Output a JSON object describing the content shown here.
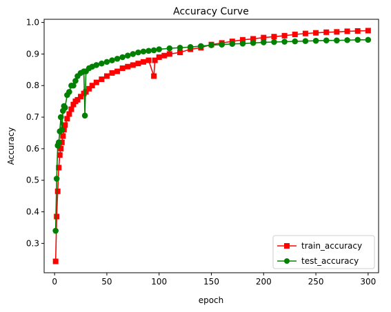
{
  "chart_data": {
    "type": "line",
    "title": "Accuracy Curve",
    "xlabel": "epoch",
    "ylabel": "Accuracy",
    "xlim": [
      -10,
      310
    ],
    "ylim": [
      0.207,
      1.01
    ],
    "xticks": [
      0,
      50,
      100,
      150,
      200,
      250,
      300
    ],
    "xtick_labels": [
      "0",
      "50",
      "100",
      "150",
      "200",
      "250",
      "300"
    ],
    "yticks": [
      0.3,
      0.4,
      0.5,
      0.6,
      0.7,
      0.8,
      0.9,
      1.0
    ],
    "ytick_labels": [
      "0.3",
      "0.4",
      "0.5",
      "0.6",
      "0.7",
      "0.8",
      "0.9",
      "1.0"
    ],
    "grid": false,
    "legend_position": "lower-right",
    "series": [
      {
        "name": "train_accuracy",
        "color": "#ff0000",
        "marker": "square",
        "x": [
          1,
          2,
          3,
          4,
          5,
          6,
          7,
          8,
          9,
          10,
          12,
          14,
          16,
          18,
          20,
          22,
          25,
          28,
          30,
          33,
          36,
          40,
          45,
          50,
          55,
          60,
          65,
          70,
          75,
          80,
          85,
          90,
          95,
          96,
          100,
          105,
          110,
          120,
          130,
          140,
          150,
          160,
          170,
          180,
          190,
          200,
          210,
          220,
          230,
          240,
          250,
          260,
          270,
          280,
          290,
          300
        ],
        "y": [
          0.243,
          0.385,
          0.465,
          0.54,
          0.58,
          0.6,
          0.62,
          0.64,
          0.66,
          0.675,
          0.695,
          0.71,
          0.725,
          0.74,
          0.75,
          0.755,
          0.765,
          0.775,
          0.78,
          0.79,
          0.8,
          0.81,
          0.82,
          0.83,
          0.84,
          0.845,
          0.855,
          0.86,
          0.865,
          0.87,
          0.875,
          0.88,
          0.83,
          0.88,
          0.89,
          0.895,
          0.9,
          0.905,
          0.915,
          0.92,
          0.93,
          0.935,
          0.94,
          0.945,
          0.948,
          0.952,
          0.955,
          0.958,
          0.962,
          0.965,
          0.967,
          0.969,
          0.97,
          0.972,
          0.973,
          0.974
        ]
      },
      {
        "name": "test_accuracy",
        "color": "#008000",
        "marker": "circle",
        "x": [
          1,
          2,
          3,
          4,
          5,
          6,
          7,
          8,
          9,
          10,
          12,
          14,
          16,
          18,
          20,
          22,
          25,
          28,
          29,
          30,
          33,
          36,
          40,
          45,
          50,
          55,
          60,
          65,
          70,
          75,
          80,
          85,
          90,
          95,
          100,
          110,
          120,
          130,
          140,
          150,
          160,
          170,
          180,
          190,
          200,
          210,
          220,
          230,
          240,
          250,
          260,
          270,
          280,
          290,
          300
        ],
        "y": [
          0.34,
          0.505,
          0.61,
          0.62,
          0.655,
          0.7,
          0.66,
          0.72,
          0.735,
          0.73,
          0.77,
          0.78,
          0.8,
          0.8,
          0.815,
          0.83,
          0.84,
          0.845,
          0.705,
          0.845,
          0.855,
          0.86,
          0.865,
          0.87,
          0.875,
          0.88,
          0.885,
          0.89,
          0.895,
          0.9,
          0.905,
          0.908,
          0.91,
          0.912,
          0.915,
          0.918,
          0.92,
          0.922,
          0.925,
          0.928,
          0.93,
          0.932,
          0.933,
          0.935,
          0.937,
          0.938,
          0.939,
          0.94,
          0.941,
          0.942,
          0.943,
          0.943,
          0.944,
          0.945,
          0.945
        ]
      }
    ]
  }
}
